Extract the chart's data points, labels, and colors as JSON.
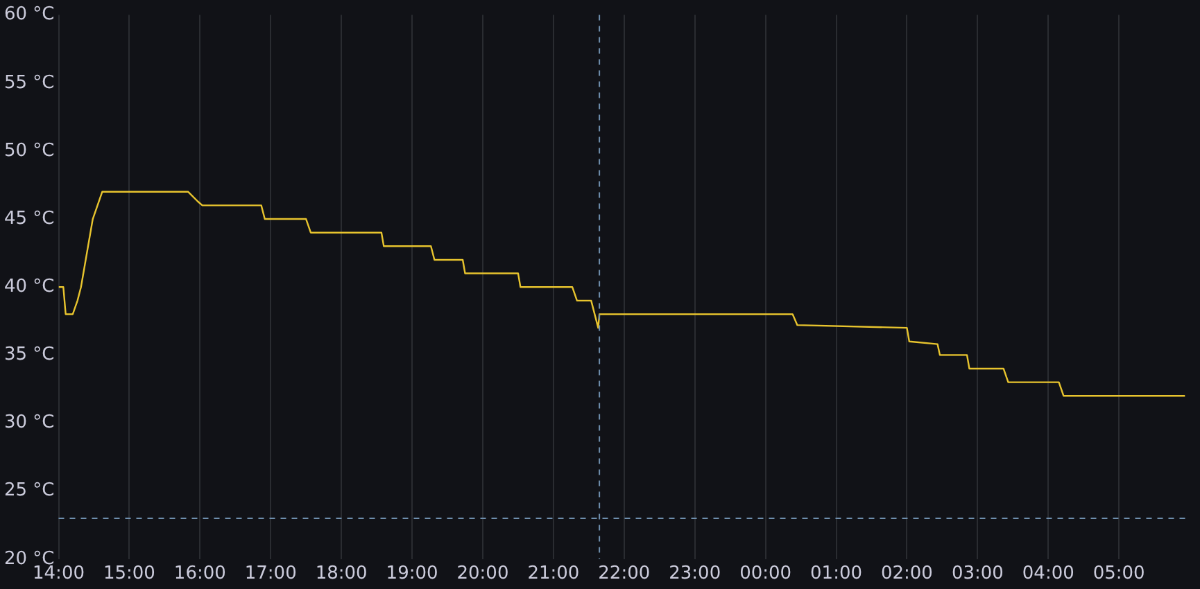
{
  "chart_data": {
    "type": "line",
    "x": [
      "--01-01T14:00",
      "--01-01T14:04",
      "--01-01T14:06",
      "--01-01T14:12",
      "--01-01T14:16",
      "--01-01T14:19",
      "--01-01T14:25",
      "--01-01T14:29",
      "--01-01T14:37",
      "--01-01T15:50",
      "--01-01T15:58",
      "--01-01T16:02",
      "--01-01T16:52",
      "--01-01T16:55",
      "--01-01T17:30",
      "--01-01T17:34",
      "--01-01T18:34",
      "--01-01T18:36",
      "--01-01T19:16",
      "--01-01T19:19",
      "--01-01T19:43",
      "--01-01T19:45",
      "--01-01T20:30",
      "--01-01T20:32",
      "--01-01T21:16",
      "--01-01T21:20",
      "--01-01T21:32",
      "--01-01T21:38",
      "--01-01T21:39",
      "--01-02T00:23",
      "--01-02T00:27",
      "--01-02T02:00",
      "--01-02T02:02",
      "--01-02T02:26",
      "--01-02T02:28",
      "--01-02T02:51",
      "--01-02T02:53",
      "--01-02T03:22",
      "--01-02T03:26",
      "--01-02T04:09",
      "--01-02T04:13",
      "--01-02T05:56"
    ],
    "series": [
      {
        "color": "#e8c42e",
        "values": [
          40,
          40,
          38,
          38,
          39,
          40,
          43,
          45,
          47,
          47,
          46.3,
          46,
          46,
          45,
          45,
          44,
          44,
          43,
          43,
          42,
          42,
          41,
          41,
          40,
          40,
          39,
          39,
          37,
          38,
          38,
          37.2,
          37,
          36,
          35.8,
          35,
          35,
          34,
          34,
          33,
          33,
          32,
          32
        ]
      }
    ],
    "xlim": [
      "--01-01T14:00",
      "--01-02T05:57"
    ],
    "xticks": [
      {
        "value": "--01-01T14:00",
        "label": "14:00"
      },
      {
        "value": "--01-01T15:00",
        "label": "15:00"
      },
      {
        "value": "--01-01T16:00",
        "label": "16:00"
      },
      {
        "value": "--01-01T17:00",
        "label": "17:00"
      },
      {
        "value": "--01-01T18:00",
        "label": "18:00"
      },
      {
        "value": "--01-01T19:00",
        "label": "19:00"
      },
      {
        "value": "--01-01T20:00",
        "label": "20:00"
      },
      {
        "value": "--01-01T21:00",
        "label": "21:00"
      },
      {
        "value": "--01-01T22:00",
        "label": "22:00"
      },
      {
        "value": "--01-01T23:00",
        "label": "23:00"
      },
      {
        "value": "--01-02T00:00",
        "label": "00:00"
      },
      {
        "value": "--01-02T01:00",
        "label": "01:00"
      },
      {
        "value": "--01-02T02:00",
        "label": "02:00"
      },
      {
        "value": "--01-02T03:00",
        "label": "03:00"
      },
      {
        "value": "--01-02T04:00",
        "label": "04:00"
      },
      {
        "value": "--01-02T05:00",
        "label": "05:00"
      }
    ],
    "ylim": [
      20,
      60
    ],
    "yticks": [
      {
        "value": 20,
        "label": "20 °C"
      },
      {
        "value": 25,
        "label": "25 °C"
      },
      {
        "value": 30,
        "label": "30 °C"
      },
      {
        "value": 35,
        "label": "35 °C"
      },
      {
        "value": 40,
        "label": "40 °C"
      },
      {
        "value": 45,
        "label": "45 °C"
      },
      {
        "value": 50,
        "label": "50 °C"
      },
      {
        "value": 55,
        "label": "55 °C"
      },
      {
        "value": 60,
        "label": "60 °C"
      }
    ],
    "ref_lines": [
      {
        "axis": "y",
        "value": 23,
        "color": "#6f8fae",
        "line_style": "dashed"
      },
      {
        "axis": "x",
        "value": "--01-01T21:39",
        "color": "#6f8fae",
        "line_style": "dashed"
      }
    ],
    "grid": "x",
    "legend": false,
    "marker": "none",
    "line_style": "solid"
  }
}
